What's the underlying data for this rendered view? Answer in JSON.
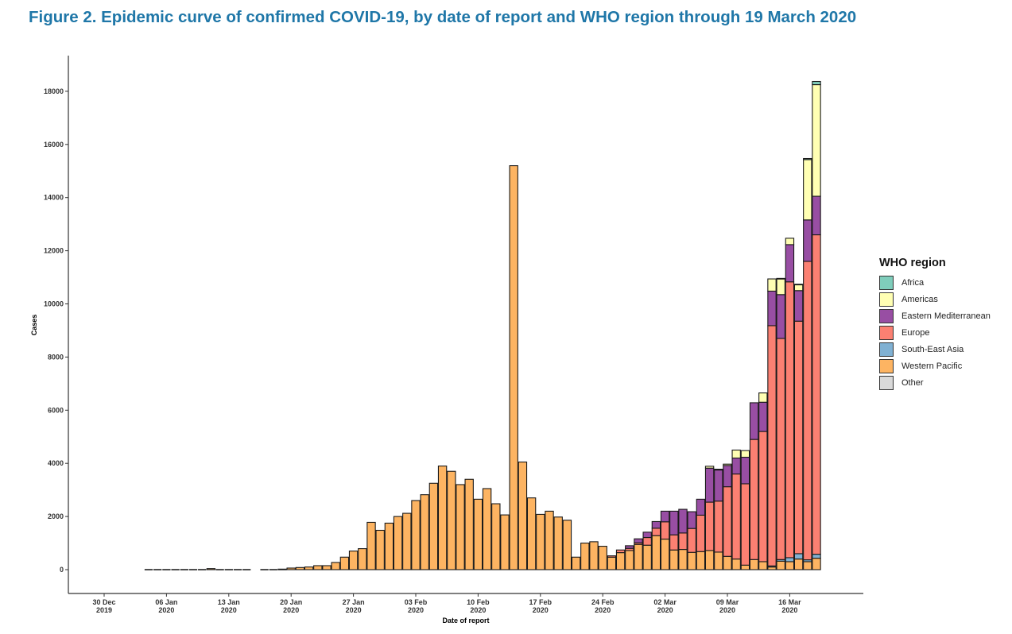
{
  "title": "Figure 2. Epidemic curve of confirmed COVID-19, by date of report and WHO region through 19 March 2020",
  "chart_data": {
    "type": "bar",
    "stacked": true,
    "xlabel": "Date of report",
    "ylabel": "Cases",
    "ylim": [
      -900,
      18800
    ],
    "yticks": [
      0,
      2000,
      4000,
      6000,
      8000,
      10000,
      12000,
      14000,
      16000,
      18000
    ],
    "x_start": "2019-12-30",
    "x_ticks": [
      {
        "line1": "30 Dec",
        "line2": "2019"
      },
      {
        "line1": "06 Jan",
        "line2": "2020"
      },
      {
        "line1": "13 Jan",
        "line2": "2020"
      },
      {
        "line1": "20 Jan",
        "line2": "2020"
      },
      {
        "line1": "27 Jan",
        "line2": "2020"
      },
      {
        "line1": "03 Feb",
        "line2": "2020"
      },
      {
        "line1": "10 Feb",
        "line2": "2020"
      },
      {
        "line1": "17 Feb",
        "line2": "2020"
      },
      {
        "line1": "24 Feb",
        "line2": "2020"
      },
      {
        "line1": "02 Mar",
        "line2": "2020"
      },
      {
        "line1": "09 Mar",
        "line2": "2020"
      },
      {
        "line1": "16 Mar",
        "line2": "2020"
      }
    ],
    "legend": {
      "title": "WHO region",
      "position": "right",
      "entries": [
        {
          "key": "africa",
          "label": "Africa",
          "color": "#7fcdbb"
        },
        {
          "key": "americas",
          "label": "Americas",
          "color": "#ffffb3"
        },
        {
          "key": "emro",
          "label": "Eastern Mediterranean",
          "color": "#984ea3"
        },
        {
          "key": "europe",
          "label": "Europe",
          "color": "#fb8072"
        },
        {
          "key": "searo",
          "label": "South-East Asia",
          "color": "#80b1d3"
        },
        {
          "key": "wpro",
          "label": "Western Pacific",
          "color": "#fdb462"
        },
        {
          "key": "other",
          "label": "Other",
          "color": "#d9d9d9"
        }
      ]
    },
    "stack_order": [
      "wpro",
      "searo",
      "europe",
      "emro",
      "americas",
      "africa"
    ],
    "series": [
      {
        "key": "wpro",
        "name": "Western Pacific",
        "values": [
          {
            "date": "2020-01-04",
            "value": 0
          },
          {
            "date": "2020-01-05",
            "value": 0
          },
          {
            "date": "2020-01-06",
            "value": 0
          },
          {
            "date": "2020-01-07",
            "value": 0
          },
          {
            "date": "2020-01-08",
            "value": 0
          },
          {
            "date": "2020-01-09",
            "value": 0
          },
          {
            "date": "2020-01-10",
            "value": 0
          },
          {
            "date": "2020-01-11",
            "value": 40
          },
          {
            "date": "2020-01-12",
            "value": 0
          },
          {
            "date": "2020-01-13",
            "value": 0
          },
          {
            "date": "2020-01-14",
            "value": 0
          },
          {
            "date": "2020-01-15",
            "value": 0
          },
          {
            "date": "2020-01-17",
            "value": 0
          },
          {
            "date": "2020-01-18",
            "value": 0
          },
          {
            "date": "2020-01-19",
            "value": 20
          },
          {
            "date": "2020-01-20",
            "value": 60
          },
          {
            "date": "2020-01-21",
            "value": 80
          },
          {
            "date": "2020-01-22",
            "value": 100
          },
          {
            "date": "2020-01-23",
            "value": 150
          },
          {
            "date": "2020-01-24",
            "value": 150
          },
          {
            "date": "2020-01-25",
            "value": 270
          },
          {
            "date": "2020-01-26",
            "value": 470
          },
          {
            "date": "2020-01-27",
            "value": 700
          },
          {
            "date": "2020-01-28",
            "value": 790
          },
          {
            "date": "2020-01-29",
            "value": 1780
          },
          {
            "date": "2020-01-30",
            "value": 1480
          },
          {
            "date": "2020-01-31",
            "value": 1750
          },
          {
            "date": "2020-02-01",
            "value": 2000
          },
          {
            "date": "2020-02-02",
            "value": 2120
          },
          {
            "date": "2020-02-03",
            "value": 2600
          },
          {
            "date": "2020-02-04",
            "value": 2820
          },
          {
            "date": "2020-02-05",
            "value": 3250
          },
          {
            "date": "2020-02-06",
            "value": 3900
          },
          {
            "date": "2020-02-07",
            "value": 3700
          },
          {
            "date": "2020-02-08",
            "value": 3200
          },
          {
            "date": "2020-02-09",
            "value": 3400
          },
          {
            "date": "2020-02-10",
            "value": 2650
          },
          {
            "date": "2020-02-11",
            "value": 3050
          },
          {
            "date": "2020-02-12",
            "value": 2480
          },
          {
            "date": "2020-02-13",
            "value": 2060
          },
          {
            "date": "2020-02-14",
            "value": 15200
          },
          {
            "date": "2020-02-15",
            "value": 4050
          },
          {
            "date": "2020-02-16",
            "value": 2700
          },
          {
            "date": "2020-02-17",
            "value": 2080
          },
          {
            "date": "2020-02-18",
            "value": 2200
          },
          {
            "date": "2020-02-19",
            "value": 1980
          },
          {
            "date": "2020-02-20",
            "value": 1860
          },
          {
            "date": "2020-02-21",
            "value": 470
          },
          {
            "date": "2020-02-22",
            "value": 1000
          },
          {
            "date": "2020-02-23",
            "value": 1050
          },
          {
            "date": "2020-02-24",
            "value": 880
          },
          {
            "date": "2020-02-25",
            "value": 470
          },
          {
            "date": "2020-02-26",
            "value": 640
          },
          {
            "date": "2020-02-27",
            "value": 720
          },
          {
            "date": "2020-02-28",
            "value": 950
          },
          {
            "date": "2020-02-29",
            "value": 920
          },
          {
            "date": "2020-03-01",
            "value": 1280
          },
          {
            "date": "2020-03-02",
            "value": 1150
          },
          {
            "date": "2020-03-03",
            "value": 740
          },
          {
            "date": "2020-03-04",
            "value": 760
          },
          {
            "date": "2020-03-05",
            "value": 650
          },
          {
            "date": "2020-03-06",
            "value": 680
          },
          {
            "date": "2020-03-07",
            "value": 720
          },
          {
            "date": "2020-03-08",
            "value": 660
          },
          {
            "date": "2020-03-09",
            "value": 500
          },
          {
            "date": "2020-03-10",
            "value": 400
          },
          {
            "date": "2020-03-11",
            "value": 170
          },
          {
            "date": "2020-03-12",
            "value": 380
          },
          {
            "date": "2020-03-13",
            "value": 300
          },
          {
            "date": "2020-03-14",
            "value": 100
          },
          {
            "date": "2020-03-15",
            "value": 320
          },
          {
            "date": "2020-03-16",
            "value": 300
          },
          {
            "date": "2020-03-17",
            "value": 400
          },
          {
            "date": "2020-03-18",
            "value": 300
          },
          {
            "date": "2020-03-19",
            "value": 430
          }
        ]
      },
      {
        "key": "searo",
        "name": "South-East Asia",
        "values": [
          {
            "date": "2020-03-14",
            "value": 40
          },
          {
            "date": "2020-03-15",
            "value": 60
          },
          {
            "date": "2020-03-16",
            "value": 150
          },
          {
            "date": "2020-03-17",
            "value": 200
          },
          {
            "date": "2020-03-18",
            "value": 70
          },
          {
            "date": "2020-03-19",
            "value": 150
          }
        ]
      },
      {
        "key": "europe",
        "name": "Europe",
        "values": [
          {
            "date": "2020-02-25",
            "value": 50
          },
          {
            "date": "2020-02-26",
            "value": 100
          },
          {
            "date": "2020-02-27",
            "value": 80
          },
          {
            "date": "2020-02-28",
            "value": 60
          },
          {
            "date": "2020-02-29",
            "value": 290
          },
          {
            "date": "2020-03-01",
            "value": 280
          },
          {
            "date": "2020-03-02",
            "value": 650
          },
          {
            "date": "2020-03-03",
            "value": 570
          },
          {
            "date": "2020-03-04",
            "value": 620
          },
          {
            "date": "2020-03-05",
            "value": 900
          },
          {
            "date": "2020-03-06",
            "value": 1370
          },
          {
            "date": "2020-03-07",
            "value": 1820
          },
          {
            "date": "2020-03-08",
            "value": 1920
          },
          {
            "date": "2020-03-09",
            "value": 2620
          },
          {
            "date": "2020-03-10",
            "value": 3200
          },
          {
            "date": "2020-03-11",
            "value": 3060
          },
          {
            "date": "2020-03-12",
            "value": 4520
          },
          {
            "date": "2020-03-13",
            "value": 4900
          },
          {
            "date": "2020-03-14",
            "value": 9040
          },
          {
            "date": "2020-03-15",
            "value": 8320
          },
          {
            "date": "2020-03-16",
            "value": 10380
          },
          {
            "date": "2020-03-17",
            "value": 8750
          },
          {
            "date": "2020-03-18",
            "value": 11230
          },
          {
            "date": "2020-03-19",
            "value": 12020
          }
        ]
      },
      {
        "key": "emro",
        "name": "Eastern Mediterranean",
        "values": [
          {
            "date": "2020-02-27",
            "value": 100
          },
          {
            "date": "2020-02-28",
            "value": 150
          },
          {
            "date": "2020-02-29",
            "value": 200
          },
          {
            "date": "2020-03-01",
            "value": 250
          },
          {
            "date": "2020-03-02",
            "value": 400
          },
          {
            "date": "2020-03-03",
            "value": 890
          },
          {
            "date": "2020-03-04",
            "value": 890
          },
          {
            "date": "2020-03-05",
            "value": 630
          },
          {
            "date": "2020-03-06",
            "value": 600
          },
          {
            "date": "2020-03-07",
            "value": 1280
          },
          {
            "date": "2020-03-08",
            "value": 1170
          },
          {
            "date": "2020-03-09",
            "value": 800
          },
          {
            "date": "2020-03-10",
            "value": 600
          },
          {
            "date": "2020-03-11",
            "value": 1000
          },
          {
            "date": "2020-03-12",
            "value": 1380
          },
          {
            "date": "2020-03-13",
            "value": 1100
          },
          {
            "date": "2020-03-14",
            "value": 1300
          },
          {
            "date": "2020-03-15",
            "value": 1650
          },
          {
            "date": "2020-03-16",
            "value": 1400
          },
          {
            "date": "2020-03-17",
            "value": 1150
          },
          {
            "date": "2020-03-18",
            "value": 1560
          },
          {
            "date": "2020-03-19",
            "value": 1450
          }
        ]
      },
      {
        "key": "americas",
        "name": "Americas",
        "values": [
          {
            "date": "2020-03-07",
            "value": 70
          },
          {
            "date": "2020-03-08",
            "value": 30
          },
          {
            "date": "2020-03-09",
            "value": 50
          },
          {
            "date": "2020-03-10",
            "value": 300
          },
          {
            "date": "2020-03-11",
            "value": 250
          },
          {
            "date": "2020-03-13",
            "value": 350
          },
          {
            "date": "2020-03-14",
            "value": 460
          },
          {
            "date": "2020-03-15",
            "value": 590
          },
          {
            "date": "2020-03-16",
            "value": 240
          },
          {
            "date": "2020-03-17",
            "value": 220
          },
          {
            "date": "2020-03-18",
            "value": 2270
          },
          {
            "date": "2020-03-19",
            "value": 4200
          }
        ]
      },
      {
        "key": "africa",
        "name": "Africa",
        "values": [
          {
            "date": "2020-03-15",
            "value": 20
          },
          {
            "date": "2020-03-17",
            "value": 20
          },
          {
            "date": "2020-03-18",
            "value": 40
          },
          {
            "date": "2020-03-19",
            "value": 120
          }
        ]
      }
    ]
  }
}
